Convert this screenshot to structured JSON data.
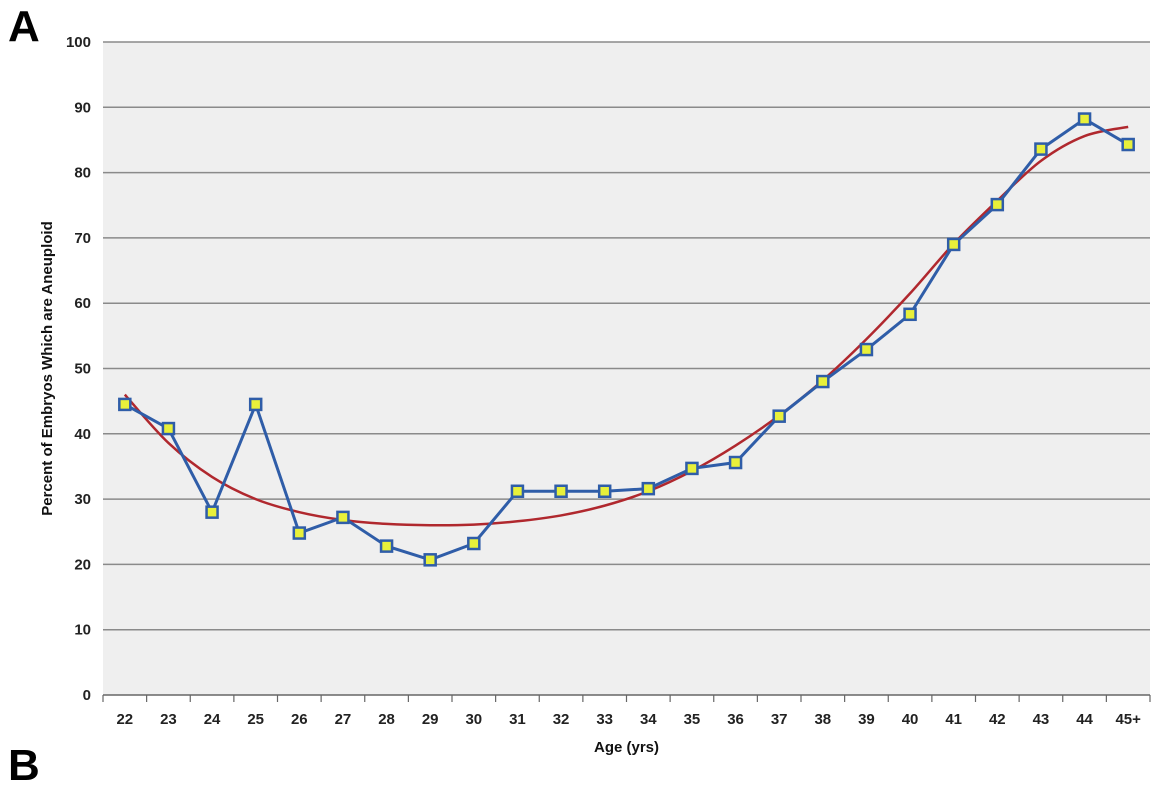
{
  "panel_label": "A",
  "next_panel_label": "B",
  "chart_data": {
    "type": "line",
    "title": "",
    "xlabel": "Age (yrs)",
    "ylabel": "Percent of Embryos Which are Aneuploid",
    "ylim": [
      0,
      100
    ],
    "yticks": [
      0,
      10,
      20,
      30,
      40,
      50,
      60,
      70,
      80,
      90,
      100
    ],
    "grid": "horizontal",
    "legend": "none",
    "categories": [
      "22",
      "23",
      "24",
      "25",
      "26",
      "27",
      "28",
      "29",
      "30",
      "31",
      "32",
      "33",
      "34",
      "35",
      "36",
      "37",
      "38",
      "39",
      "40",
      "41",
      "42",
      "43",
      "44",
      "45+"
    ],
    "series": [
      {
        "values": [
          44.5,
          40.8,
          28.0,
          44.5,
          24.8,
          27.2,
          22.8,
          20.7,
          23.2,
          31.2,
          31.2,
          31.2,
          31.6,
          34.7,
          35.6,
          42.7,
          48.0,
          52.9,
          58.3,
          69.0,
          75.1,
          83.6,
          88.2,
          84.3
        ],
        "color": "#2f5da8",
        "marker_fill": "#e8f03a",
        "marker": "square"
      }
    ],
    "trendline": {
      "type": "polynomial",
      "color": "#b0282e",
      "values": [
        46.0,
        38.6,
        33.4,
        30.0,
        28.0,
        26.8,
        26.2,
        26.0,
        26.1,
        26.6,
        27.5,
        29.0,
        31.2,
        34.3,
        38.2,
        42.8,
        48.2,
        54.5,
        61.5,
        69.1,
        75.7,
        81.8,
        85.6,
        87.0
      ]
    },
    "colors": {
      "plot_background": "#efefef",
      "gridline": "#8a8a8a"
    }
  }
}
